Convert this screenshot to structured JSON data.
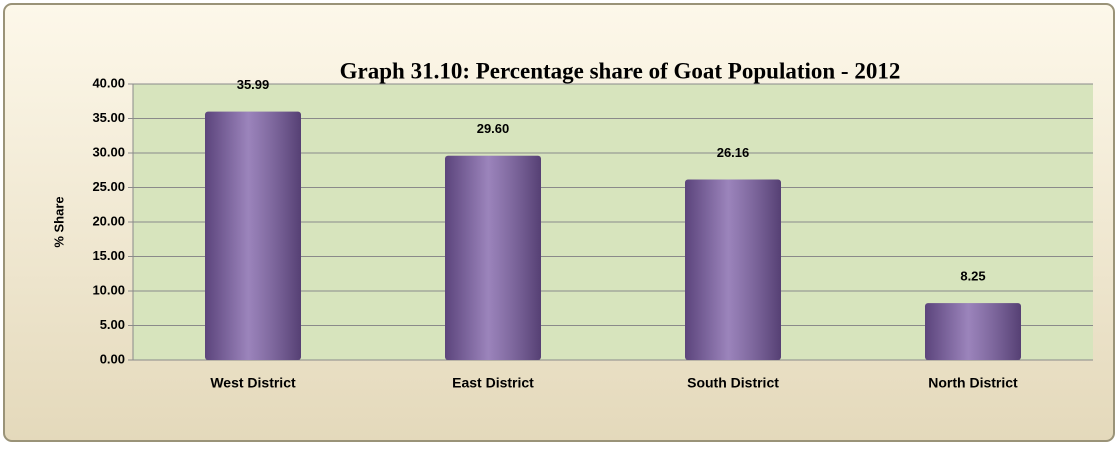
{
  "chart_data": {
    "type": "bar",
    "title": "Graph 31.10: Percentage share of Goat Population - 2012",
    "y_label": "% Share",
    "categories": [
      "West District",
      "East District",
      "South District",
      "North District"
    ],
    "values": [
      35.99,
      29.6,
      26.16,
      8.25
    ],
    "value_labels": [
      "35.99",
      "29.60",
      "26.16",
      "8.25"
    ],
    "color": "#7a5ba5",
    "ylim": [
      0,
      40
    ],
    "yticks": [
      {
        "value": 0,
        "label": "0.00"
      },
      {
        "value": 5,
        "label": "5.00"
      },
      {
        "value": 10,
        "label": "10.00"
      },
      {
        "value": 15,
        "label": "15.00"
      },
      {
        "value": 20,
        "label": "20.00"
      },
      {
        "value": 25,
        "label": "25.00"
      },
      {
        "value": 30,
        "label": "30.00"
      },
      {
        "value": 35,
        "label": "35.00"
      },
      {
        "value": 40,
        "label": "40.00"
      }
    ],
    "grid": true
  }
}
